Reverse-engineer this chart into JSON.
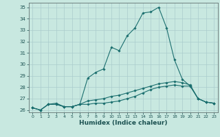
{
  "xlabel": "Humidex (Indice chaleur)",
  "bg_color": "#c8e8e0",
  "grid_color": "#aacccc",
  "line_color": "#1a6e6e",
  "xlim": [
    -0.5,
    23.5
  ],
  "ylim": [
    25.8,
    35.4
  ],
  "yticks": [
    26,
    27,
    28,
    29,
    30,
    31,
    32,
    33,
    34,
    35
  ],
  "xticks": [
    0,
    1,
    2,
    3,
    4,
    5,
    6,
    7,
    8,
    9,
    10,
    11,
    12,
    13,
    14,
    15,
    16,
    17,
    18,
    19,
    20,
    21,
    22,
    23
  ],
  "line1_x": [
    0,
    1,
    2,
    3,
    4,
    5,
    6,
    7,
    8,
    9,
    10,
    11,
    12,
    13,
    14,
    15,
    16,
    17,
    18,
    19,
    20,
    21,
    22,
    23
  ],
  "line1_y": [
    26.2,
    26.0,
    26.5,
    26.5,
    26.3,
    26.3,
    26.5,
    28.8,
    29.3,
    29.6,
    31.5,
    31.2,
    32.5,
    33.2,
    34.5,
    34.6,
    35.0,
    33.2,
    30.4,
    28.7,
    28.1,
    27.0,
    26.7,
    26.6
  ],
  "line2_x": [
    0,
    1,
    2,
    3,
    4,
    5,
    6,
    7,
    8,
    9,
    10,
    11,
    12,
    13,
    14,
    15,
    16,
    17,
    18,
    19,
    20,
    21,
    22,
    23
  ],
  "line2_y": [
    26.2,
    26.0,
    26.5,
    26.5,
    26.3,
    26.3,
    26.5,
    26.5,
    26.6,
    26.6,
    26.7,
    26.8,
    27.0,
    27.2,
    27.5,
    27.8,
    28.0,
    28.1,
    28.2,
    28.1,
    28.1,
    27.0,
    26.7,
    26.6
  ],
  "line3_x": [
    0,
    1,
    2,
    3,
    4,
    5,
    6,
    7,
    8,
    9,
    10,
    11,
    12,
    13,
    14,
    15,
    16,
    17,
    18,
    19,
    20,
    21,
    22,
    23
  ],
  "line3_y": [
    26.2,
    26.0,
    26.5,
    26.6,
    26.3,
    26.3,
    26.5,
    26.8,
    26.9,
    27.0,
    27.2,
    27.3,
    27.5,
    27.7,
    27.9,
    28.1,
    28.3,
    28.4,
    28.5,
    28.4,
    28.2,
    27.0,
    26.7,
    26.6
  ]
}
